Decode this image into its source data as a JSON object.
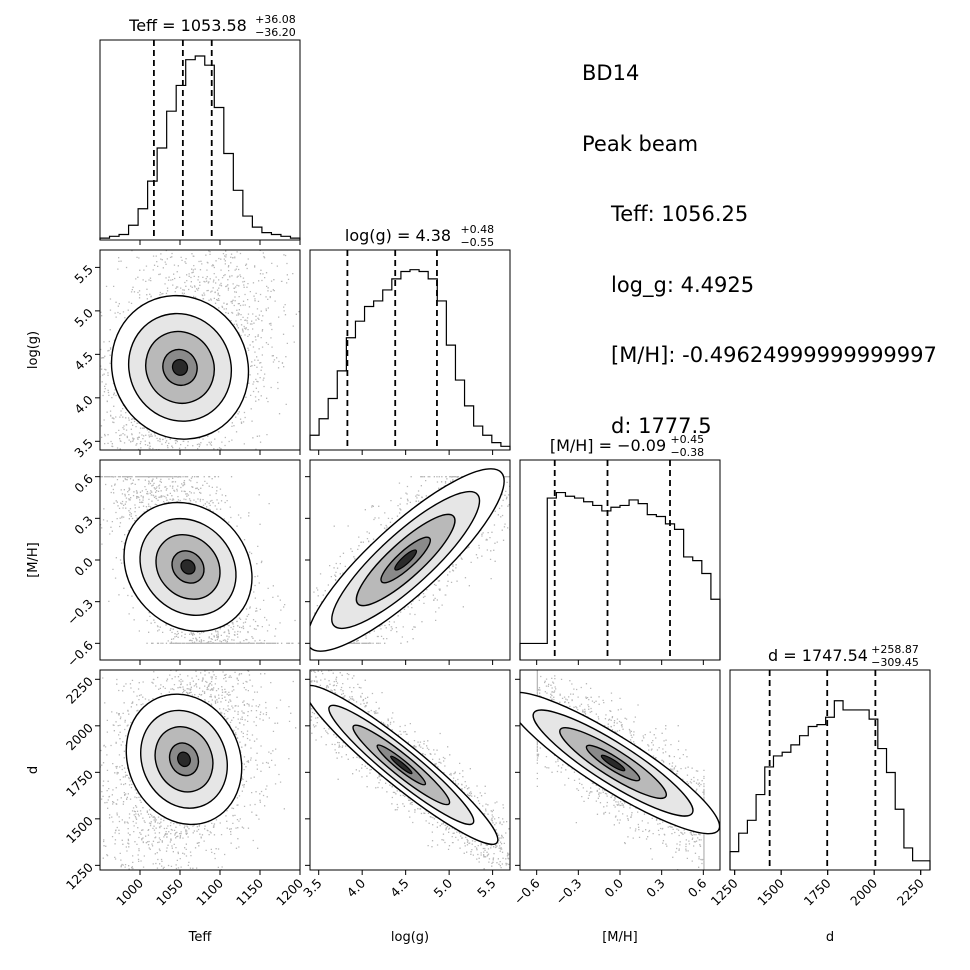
{
  "chart_data": {
    "type": "corner",
    "parameters": [
      {
        "name": "Teff",
        "label": "Teff",
        "range": [
          950,
          1200
        ],
        "ticks": [
          1000,
          1050,
          1100,
          1150,
          1200
        ],
        "median": 1053.58,
        "q16": 1017.38,
        "q84": 1089.66,
        "title": {
          "main": "Teff = 1053.58",
          "up": "+36.08",
          "down": "−36.20"
        },
        "hist": [
          0.01,
          0.02,
          0.03,
          0.08,
          0.17,
          0.32,
          0.5,
          0.7,
          0.84,
          0.98,
          1.0,
          0.95,
          0.72,
          0.47,
          0.27,
          0.13,
          0.07,
          0.04,
          0.03,
          0.02,
          0.01
        ]
      },
      {
        "name": "log(g)",
        "label": "log(g)",
        "range": [
          3.4,
          5.7
        ],
        "ticks": [
          3.5,
          4.0,
          4.5,
          5.0,
          5.5
        ],
        "median": 4.38,
        "q16": 3.83,
        "q84": 4.86,
        "title": {
          "main": "log(g) = 4.38",
          "up": "+0.48",
          "down": "−0.55"
        },
        "hist": [
          0.08,
          0.17,
          0.28,
          0.43,
          0.61,
          0.7,
          0.78,
          0.81,
          0.87,
          0.93,
          0.97,
          0.98,
          0.97,
          0.93,
          0.81,
          0.57,
          0.38,
          0.24,
          0.13,
          0.08,
          0.04,
          0.02
        ]
      },
      {
        "name": "[M/H]",
        "label": "[M/H]",
        "range": [
          -0.72,
          0.72
        ],
        "ticks": [
          -0.6,
          -0.3,
          0.0,
          0.3,
          0.6
        ],
        "median": -0.09,
        "q16": -0.47,
        "q84": 0.36,
        "title": {
          "main": "[M/H] = −0.09",
          "up": "+0.45",
          "down": "−0.38"
        },
        "hist": [
          0.09,
          0.09,
          0.09,
          0.88,
          0.91,
          0.89,
          0.88,
          0.86,
          0.84,
          0.81,
          0.83,
          0.84,
          0.87,
          0.85,
          0.79,
          0.78,
          0.74,
          0.71,
          0.56,
          0.54,
          0.47,
          0.33
        ]
      },
      {
        "name": "d",
        "label": "d",
        "range": [
          1225,
          2300
        ],
        "ticks": [
          1250,
          1500,
          1750,
          2000,
          2250
        ],
        "median": 1747.54,
        "q16": 1438.09,
        "q84": 2006.41,
        "title": {
          "main": "d = 1747.54",
          "up": "+258.87",
          "down": "−309.45"
        },
        "hist": [
          0.1,
          0.2,
          0.27,
          0.41,
          0.56,
          0.62,
          0.64,
          0.68,
          0.73,
          0.78,
          0.79,
          0.83,
          0.92,
          0.87,
          0.87,
          0.87,
          0.82,
          0.66,
          0.53,
          0.33,
          0.12,
          0.05,
          0.05
        ]
      }
    ],
    "pairs": [
      {
        "row": 1,
        "col": 0,
        "x": "Teff",
        "y": "log(g)",
        "center": [
          1050,
          4.35
        ],
        "spread": [
          38,
          0.48
        ],
        "corr": 0.35
      },
      {
        "row": 2,
        "col": 0,
        "x": "Teff",
        "y": "[M/H]",
        "center": [
          1060,
          -0.05
        ],
        "spread": [
          30,
          0.3
        ],
        "corr": -0.6
      },
      {
        "row": 2,
        "col": 1,
        "x": "log(g)",
        "y": "[M/H]",
        "center": [
          4.5,
          0.0
        ],
        "spread": [
          0.55,
          0.35
        ],
        "corr": 0.9
      },
      {
        "row": 3,
        "col": 0,
        "x": "Teff",
        "y": "d",
        "center": [
          1055,
          1820
        ],
        "spread": [
          32,
          200
        ],
        "corr": 0.3
      },
      {
        "row": 3,
        "col": 1,
        "x": "log(g)",
        "y": "d",
        "center": [
          4.45,
          1790
        ],
        "spread": [
          0.55,
          220
        ],
        "corr": -0.95
      },
      {
        "row": 3,
        "col": 2,
        "x": "[M/H]",
        "y": "d",
        "center": [
          -0.05,
          1800
        ],
        "spread": [
          0.38,
          200
        ],
        "corr": -0.9
      }
    ]
  },
  "peak_beam": {
    "name": "BD14",
    "heading": "Peak beam",
    "teff": "Teff: 1056.25",
    "logg": "log_g: 4.4925",
    "mh": "[M/H]: -0.49624999999999997",
    "d": "d: 1777.5"
  }
}
